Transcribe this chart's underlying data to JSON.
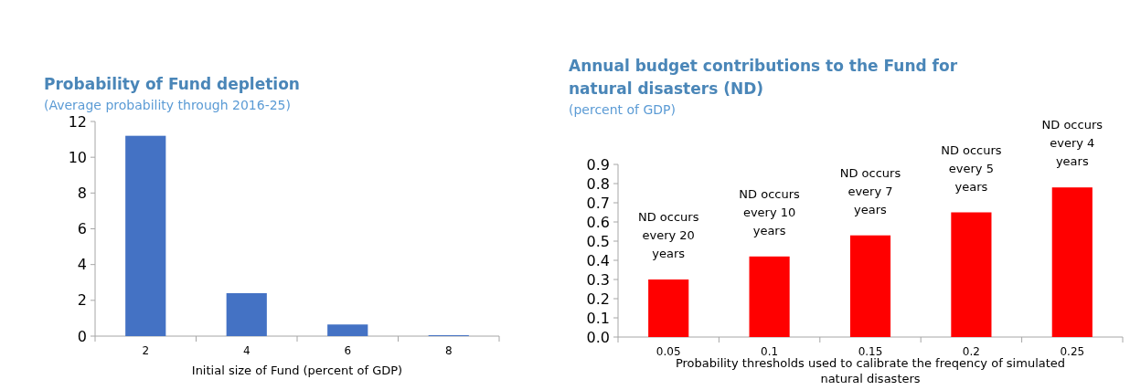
{
  "chart_data": [
    {
      "type": "bar",
      "title": "Probability of Fund depletion",
      "subtitle": "(Average probability through 2016-25)",
      "xlabel": "Initial size of Fund (percent of GDP)",
      "categories": [
        "2",
        "4",
        "6",
        "8"
      ],
      "values": [
        11.2,
        2.4,
        0.65,
        0.05
      ],
      "color": "#4472c4",
      "ylim": [
        0,
        12
      ],
      "yticks": [
        0,
        2,
        4,
        6,
        8,
        10,
        12
      ]
    },
    {
      "type": "bar",
      "title": "Annual budget contributions to the Fund for natural disasters (ND)",
      "subtitle": "(percent of GDP)",
      "xlabel": "Probability thresholds used to calibrate the freqency of  simulated natural disasters",
      "categories": [
        "0.05",
        "0.1",
        "0.15",
        "0.2",
        "0.25"
      ],
      "values": [
        0.3,
        0.42,
        0.53,
        0.65,
        0.78
      ],
      "color": "#ff0000",
      "ylim": [
        0,
        0.9
      ],
      "yticks": [
        {
          "value": 0,
          "label": "0.0"
        },
        {
          "value": 0.1,
          "label": "0.1"
        },
        {
          "value": 0.2,
          "label": "0.2"
        },
        {
          "value": 0.3,
          "label": "0.3"
        },
        {
          "value": 0.4,
          "label": "0.4"
        },
        {
          "value": 0.5,
          "label": "0.5"
        },
        {
          "value": 0.6,
          "label": "0.6"
        },
        {
          "value": 0.7,
          "label": "0.7"
        },
        {
          "value": 0.8,
          "label": "0.8"
        },
        {
          "value": 0.9,
          "label": "0.9"
        }
      ],
      "annotations": [
        {
          "text": "ND occurs every  20 years",
          "x": "0.05",
          "y": 0.3
        },
        {
          "text": "ND occurs every  10 years",
          "x": "0.1",
          "y": 0.42
        },
        {
          "text": "ND occurs every  7 years",
          "x": "0.15",
          "y": 0.53
        },
        {
          "text": "ND occurs every  5 years",
          "x": "0.2",
          "y": 0.65
        },
        {
          "text": "ND occurs every  4 years",
          "x": "0.25",
          "y": 0.78
        }
      ]
    }
  ]
}
